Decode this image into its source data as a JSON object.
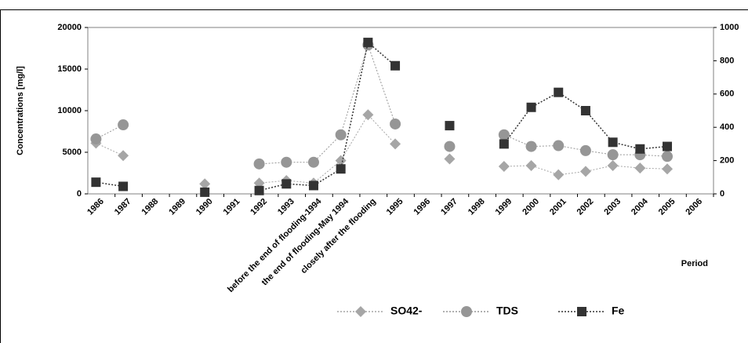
{
  "chart_data": {
    "type": "line",
    "y_label": "Concentrations [mg/l]",
    "x_label": "Period",
    "categories": [
      "1986",
      "1987",
      "1988",
      "1989",
      "1990",
      "1991",
      "1992",
      "1993",
      "before the end of flooding-1994",
      "the end of flooding-May 1994",
      "closely after the flooding",
      "1995",
      "1996",
      "1997",
      "1998",
      "1999",
      "2000",
      "2001",
      "2002",
      "2003",
      "2004",
      "2005",
      "2006"
    ],
    "ylim": [
      0,
      20000
    ],
    "yticks": [
      0,
      5000,
      10000,
      15000,
      20000
    ],
    "y2lim": [
      0,
      1000
    ],
    "y2ticks": [
      0,
      200,
      400,
      600,
      800,
      1000
    ],
    "series": [
      {
        "name": "SO42-",
        "color": "#a6a6a6",
        "marker": "diamond",
        "values": [
          6100,
          4600,
          null,
          null,
          1200,
          null,
          1300,
          1600,
          1300,
          4000,
          9500,
          6000,
          null,
          4200,
          null,
          3300,
          3400,
          2300,
          2700,
          3400,
          3100,
          3000,
          null
        ]
      },
      {
        "name": "TDS",
        "color": "#969696",
        "marker": "circle",
        "values": [
          6600,
          8300,
          null,
          null,
          null,
          null,
          3600,
          3800,
          3800,
          7100,
          17900,
          8400,
          null,
          5700,
          null,
          7100,
          5700,
          5800,
          5200,
          4700,
          4700,
          4500,
          null
        ]
      },
      {
        "name": "Fe",
        "color": "#333333",
        "marker": "square",
        "axis": "y2",
        "values": [
          70,
          45,
          null,
          null,
          10,
          null,
          20,
          60,
          50,
          150,
          910,
          770,
          null,
          410,
          null,
          300,
          520,
          610,
          500,
          310,
          270,
          285,
          null
        ]
      }
    ]
  }
}
